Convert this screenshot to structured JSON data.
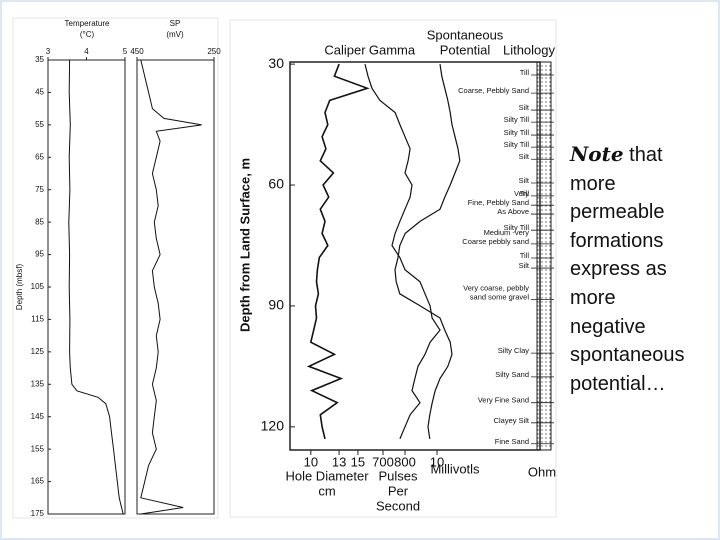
{
  "left_log": {
    "depth_label": "Depth (mbsf)",
    "ylim": [
      35,
      175
    ],
    "depth_ticks": [
      35,
      45,
      55,
      65,
      75,
      85,
      95,
      105,
      115,
      125,
      135,
      145,
      155,
      165,
      175
    ],
    "temperature": {
      "title": "Temperature",
      "unit": "(°C)",
      "xlim": [
        3,
        5
      ],
      "ticks": [
        3,
        4,
        5
      ],
      "depth": [
        35,
        45,
        55,
        65,
        75,
        85,
        95,
        105,
        115,
        125,
        130,
        135,
        137,
        139,
        141,
        145,
        150,
        155,
        160,
        165,
        170,
        175
      ],
      "values": [
        3.56,
        3.55,
        3.58,
        3.55,
        3.57,
        3.54,
        3.56,
        3.55,
        3.57,
        3.56,
        3.58,
        3.62,
        3.75,
        4.3,
        4.5,
        4.6,
        4.65,
        4.7,
        4.75,
        4.8,
        4.85,
        4.95
      ]
    },
    "sp": {
      "title": "SP",
      "unit": "(mV)",
      "xlim": [
        450,
        250
      ],
      "ticks": [
        450,
        250
      ],
      "depth": [
        35,
        40,
        45,
        50,
        53,
        55,
        57,
        60,
        65,
        70,
        75,
        80,
        85,
        90,
        95,
        100,
        105,
        110,
        115,
        120,
        125,
        130,
        135,
        140,
        145,
        150,
        155,
        160,
        165,
        170,
        173,
        175
      ],
      "values": [
        440,
        430,
        420,
        410,
        380,
        282,
        400,
        390,
        400,
        410,
        400,
        395,
        405,
        400,
        390,
        410,
        405,
        395,
        390,
        400,
        395,
        400,
        410,
        400,
        405,
        410,
        400,
        420,
        430,
        440,
        330,
        440
      ]
    }
  },
  "right_log": {
    "depth_label": "Depth from Land Surface, m",
    "ylim": [
      26,
      125
    ],
    "depth_ticks": [
      30,
      60,
      90,
      120
    ],
    "depth": [
      30,
      33,
      36,
      39,
      42,
      45,
      48,
      51,
      54,
      57,
      60,
      63,
      66,
      69,
      72,
      75,
      78,
      81,
      84,
      87,
      90,
      93,
      96,
      99,
      102,
      105,
      108,
      111,
      114,
      117,
      120,
      123
    ],
    "caliper": {
      "title": "Caliper",
      "xlim": [
        8,
        20
      ],
      "ticks": [
        10,
        13,
        15
      ],
      "label": [
        "Hole Diameter",
        "cm"
      ],
      "values": [
        13.0,
        12.5,
        16.0,
        12.0,
        11.5,
        11.8,
        11.2,
        11.6,
        11.0,
        12.4,
        11.3,
        11.9,
        11.0,
        11.5,
        11.2,
        11.8,
        10.9,
        10.7,
        10.6,
        10.8,
        10.5,
        10.6,
        10.3,
        10.0,
        12.5,
        9.8,
        13.2,
        10.1,
        12.8,
        11.0,
        11.2,
        11.5
      ]
    },
    "gamma": {
      "title": "Gamma",
      "xlim": [
        500,
        1000
      ],
      "ticks": [
        700,
        800
      ],
      "label": [
        "Pulses",
        "Per",
        "Second"
      ],
      "values": [
        618,
        632,
        650,
        686,
        755,
        777,
        800,
        823,
        814,
        800,
        832,
        823,
        800,
        777,
        755,
        741,
        777,
        800,
        868,
        891,
        914,
        923,
        959,
        914,
        891,
        859,
        845,
        832,
        868,
        823,
        800,
        777
      ]
    },
    "sp": {
      "title": [
        "Spontaneous",
        "Potential"
      ],
      "xlim": [
        0,
        20
      ],
      "ticks": [
        10
      ],
      "label": [
        "Millivotls"
      ],
      "values": [
        10.5,
        10.8,
        11.3,
        11.8,
        12.2,
        12.5,
        13.0,
        13.5,
        13.8,
        13.0,
        12.2,
        11.3,
        10.5,
        7.2,
        4.7,
        3.8,
        3.5,
        3.0,
        3.2,
        3.8,
        7.2,
        10.5,
        11.3,
        12.2,
        12.5,
        11.8,
        10.5,
        9.7,
        9.2,
        8.8,
        8.5,
        8.8
      ]
    },
    "lithology": {
      "title": "Lithology",
      "unit": "Ohm",
      "units": [
        {
          "lines": [
            "Till"
          ],
          "depth": 32.7
        },
        {
          "lines": [
            "Coarse, Pebbly Sand"
          ],
          "depth": 37.2
        },
        {
          "lines": [
            "Silt"
          ],
          "depth": 41.4
        },
        {
          "lines": [
            "Silty Till"
          ],
          "depth": 44.4
        },
        {
          "lines": [
            "Silty Till"
          ],
          "depth": 47.6
        },
        {
          "lines": [
            "Silty Till"
          ],
          "depth": 50.6
        },
        {
          "lines": [
            "Silt"
          ],
          "depth": 53.6
        },
        {
          "lines": [
            "Silt"
          ],
          "depth": 59.5
        },
        {
          "lines": [
            "Till"
          ],
          "depth": 62.7
        },
        {
          "lines": [
            "Very",
            "Fine, Pebbly Sand"
          ],
          "depth": 65.0
        },
        {
          "lines": [
            "As Above"
          ],
          "depth": 67.2
        },
        {
          "lines": [
            "Silty Till"
          ],
          "depth": 71.2
        },
        {
          "lines": [
            "Medium -very",
            "Coarse pebbly sand"
          ],
          "depth": 74.6
        },
        {
          "lines": [
            "Till"
          ],
          "depth": 78.1
        },
        {
          "lines": [
            "Silt"
          ],
          "depth": 80.6
        },
        {
          "lines": [
            "Very coarse, pebbly",
            "sand some gravel"
          ],
          "depth": 88.4
        },
        {
          "lines": [
            "Silty Clay"
          ],
          "depth": 101.7
        },
        {
          "lines": [
            "Silty Sand"
          ],
          "depth": 107.6
        },
        {
          "lines": [
            "Very Fine Sand"
          ],
          "depth": 114.0
        },
        {
          "lines": [
            "Clayey Silt"
          ],
          "depth": 119.0
        },
        {
          "lines": [
            "Fine Sand"
          ],
          "depth": 124.2
        }
      ]
    }
  },
  "note": {
    "emphasis": "Note",
    "lines": [
      "that",
      "more",
      "permeable",
      "formations",
      "express as",
      "more",
      "negative",
      "spontaneous",
      "potential…"
    ]
  }
}
